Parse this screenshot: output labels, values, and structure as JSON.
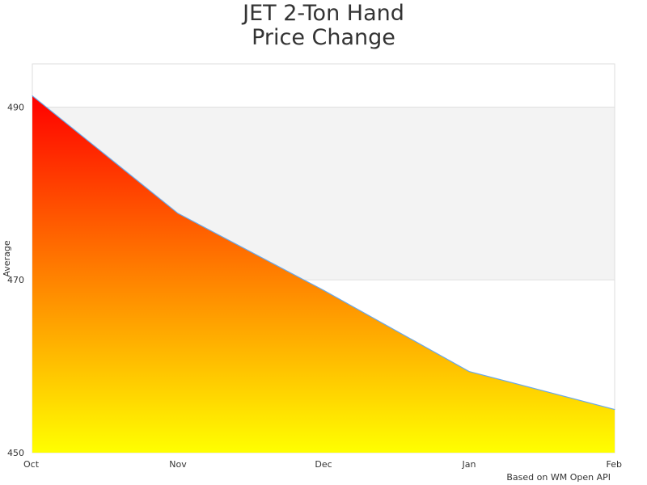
{
  "chart_data": {
    "type": "area",
    "title_lines": [
      "JET 2-Ton Hand",
      "Price Change"
    ],
    "xlabel": "",
    "ylabel": "Average",
    "categories": [
      "Oct",
      "Nov",
      "Dec",
      "Jan",
      "Feb"
    ],
    "series": [
      {
        "values": [
          491.3,
          477.7,
          468.8,
          459.4,
          455.0
        ]
      }
    ],
    "ylim": [
      450,
      495
    ],
    "yticks": [
      450,
      470,
      490
    ],
    "grid": "alternating horizontal bands",
    "legend": "none",
    "colors": {
      "fill_top": "#ff0000",
      "fill_bottom": "#ffff00",
      "line": "#6aa8e8",
      "band": "#f3f3f3"
    },
    "credit": "Based on WM Open API"
  }
}
